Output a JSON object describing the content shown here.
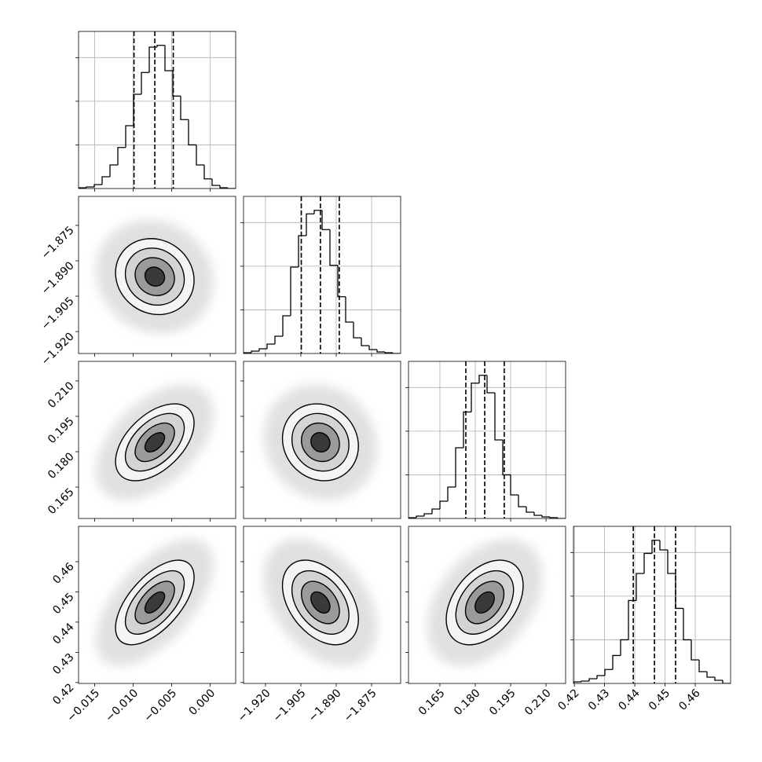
{
  "chart_data": {
    "type": "corner",
    "grid": true,
    "line_color": "#000000",
    "ylim": [
      0,
      1800
    ],
    "yticks": [
      500,
      1000,
      1500
    ],
    "parameters": [
      {
        "xlim": [
          -0.0171,
          0.0033
        ],
        "xticks": [
          {
            "value": -0.015,
            "label": "−0.015"
          },
          {
            "value": -0.01,
            "label": "−0.010"
          },
          {
            "value": -0.005,
            "label": "−0.005"
          },
          {
            "value": 0,
            "label": "0.000"
          }
        ],
        "bins": [
          -0.0171,
          -0.01608,
          -0.01506,
          -0.01404,
          -0.01302,
          -0.012,
          -0.01098,
          -0.00996,
          -0.00894,
          -0.00792,
          -0.0069,
          -0.00588,
          -0.00486,
          -0.00384,
          -0.00282,
          -0.0018,
          -0.00078,
          0.00024,
          0.00126,
          0.00228,
          0.0033
        ],
        "counts": [
          9,
          18,
          45,
          135,
          270,
          470,
          720,
          1080,
          1330,
          1620,
          1640,
          1350,
          1060,
          790,
          500,
          270,
          110,
          36,
          9,
          0
        ],
        "quantiles": [
          -0.0099,
          -0.0072,
          -0.0048
        ],
        "corr": []
      },
      {
        "xlim": [
          -1.9293,
          -1.8627
        ],
        "xticks": [
          {
            "value": -1.92,
            "label": "−1.920"
          },
          {
            "value": -1.905,
            "label": "−1.905"
          },
          {
            "value": -1.89,
            "label": "−1.890"
          },
          {
            "value": -1.875,
            "label": "−1.875"
          }
        ],
        "bins": [
          -1.9293,
          -1.92597,
          -1.92264,
          -1.91931,
          -1.91598,
          -1.91265,
          -1.90932,
          -1.90599,
          -1.90266,
          -1.89933,
          -1.896,
          -1.89267,
          -1.88934,
          -1.88601,
          -1.88268,
          -1.87935,
          -1.87602,
          -1.87269,
          -1.86936,
          -1.86603,
          -1.8627
        ],
        "counts": [
          9,
          27,
          54,
          108,
          198,
          432,
          990,
          1350,
          1600,
          1640,
          1420,
          1010,
          650,
          360,
          180,
          90,
          45,
          18,
          9,
          0
        ],
        "quantiles": [
          -1.9048,
          -1.8967,
          -1.8887
        ],
        "corr": [
          -0.1
        ]
      },
      {
        "xlim": [
          0.1517,
          0.2183
        ],
        "xticks": [
          0.165,
          {
            "value": 0.18,
            "label": "0.180"
          },
          0.195,
          {
            "value": 0.21,
            "label": "0.210"
          }
        ],
        "bins": [
          0.1517,
          0.15503,
          0.15836,
          0.16169,
          0.16502,
          0.16835,
          0.17168,
          0.17501,
          0.17834,
          0.18167,
          0.185,
          0.18833,
          0.19166,
          0.19499,
          0.19832,
          0.20165,
          0.20498,
          0.20831,
          0.21164,
          0.21497,
          0.2183
        ],
        "counts": [
          9,
          27,
          54,
          108,
          198,
          360,
          810,
          1220,
          1550,
          1640,
          1440,
          900,
          500,
          270,
          135,
          72,
          36,
          18,
          9,
          0
        ],
        "quantiles": [
          0.176,
          0.184,
          0.1923
        ],
        "corr": [
          0.5,
          -0.1
        ]
      },
      {
        "xlim": [
          0.4197,
          0.4717
        ],
        "xticks": [
          0.42,
          0.43,
          0.44,
          0.45,
          0.46
        ],
        "bins": [
          0.4197,
          0.4223,
          0.4249,
          0.4275,
          0.4301,
          0.4327,
          0.4353,
          0.4379,
          0.4405,
          0.4431,
          0.4457,
          0.4483,
          0.4509,
          0.4535,
          0.4561,
          0.4587,
          0.4613,
          0.4639,
          0.4665,
          0.4691,
          0.4717
        ],
        "counts": [
          18,
          27,
          54,
          90,
          160,
          320,
          500,
          950,
          1260,
          1490,
          1640,
          1530,
          1260,
          860,
          500,
          270,
          135,
          72,
          36,
          0
        ],
        "quantiles": [
          0.4395,
          0.4465,
          0.4535
        ],
        "corr": [
          0.6,
          -0.4,
          0.4
        ]
      }
    ]
  }
}
